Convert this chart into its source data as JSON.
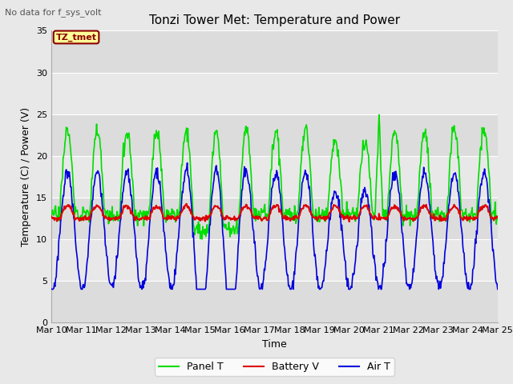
{
  "title": "Tonzi Tower Met: Temperature and Power",
  "subtitle": "No data for f_sys_volt",
  "xlabel": "Time",
  "ylabel": "Temperature (C) / Power (V)",
  "ylim": [
    0,
    35
  ],
  "yticks": [
    0,
    5,
    10,
    15,
    20,
    25,
    30,
    35
  ],
  "xlim": [
    0,
    15
  ],
  "xtick_labels": [
    "Mar 10",
    "Mar 11",
    "Mar 12",
    "Mar 13",
    "Mar 14",
    "Mar 15",
    "Mar 16",
    "Mar 17",
    "Mar 18",
    "Mar 19",
    "Mar 20",
    "Mar 21",
    "Mar 22",
    "Mar 23",
    "Mar 24",
    "Mar 25"
  ],
  "annotation_text": "TZ_tmet",
  "annotation_box_color": "#FFFF99",
  "annotation_box_edge": "#8B0000",
  "panel_t_color": "#00DD00",
  "battery_v_color": "#DD0000",
  "air_t_color": "#0000DD",
  "legend_labels": [
    "Panel T",
    "Battery V",
    "Air T"
  ],
  "plot_bg_color": "#E8E8E8",
  "grid_color": "#FFFFFF",
  "title_fontsize": 11,
  "label_fontsize": 9,
  "tick_fontsize": 8,
  "fig_bg_color": "#E8E8E8"
}
